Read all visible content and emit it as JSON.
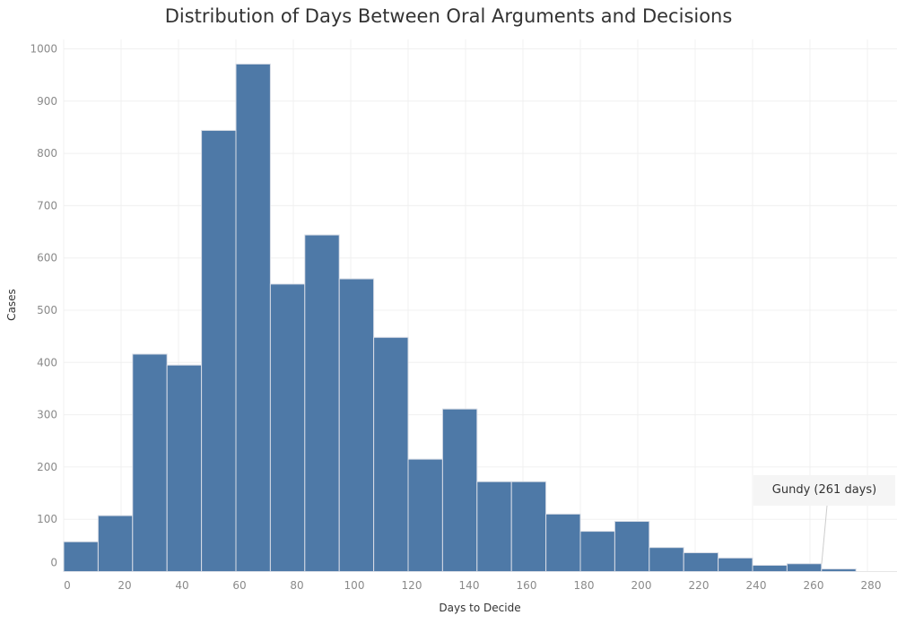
{
  "chart_data": {
    "type": "bar",
    "title": "Distribution of Days Between Oral Arguments and Decisions",
    "xlabel": "Days to Decide",
    "ylabel": "Cases",
    "bin_width": 12,
    "bin_starts": [
      0,
      12,
      24,
      36,
      48,
      60,
      72,
      84,
      96,
      108,
      120,
      132,
      144,
      156,
      168,
      180,
      192,
      204,
      216,
      228,
      240,
      252,
      264
    ],
    "values": [
      57,
      107,
      416,
      395,
      844,
      971,
      550,
      644,
      560,
      448,
      215,
      311,
      172,
      172,
      110,
      77,
      96,
      46,
      36,
      26,
      12,
      15,
      5
    ],
    "xlim": [
      0,
      290
    ],
    "ylim": [
      0,
      1000
    ],
    "x_ticks": [
      0,
      20,
      40,
      60,
      80,
      100,
      120,
      140,
      160,
      180,
      200,
      220,
      240,
      260,
      280
    ],
    "y_ticks": [
      0,
      100,
      200,
      300,
      400,
      500,
      600,
      700,
      800,
      900,
      1000
    ],
    "grid": true,
    "bar_color": "#4e79a7",
    "annotation": {
      "text": "Gundy (261 days)",
      "x": 261
    }
  }
}
